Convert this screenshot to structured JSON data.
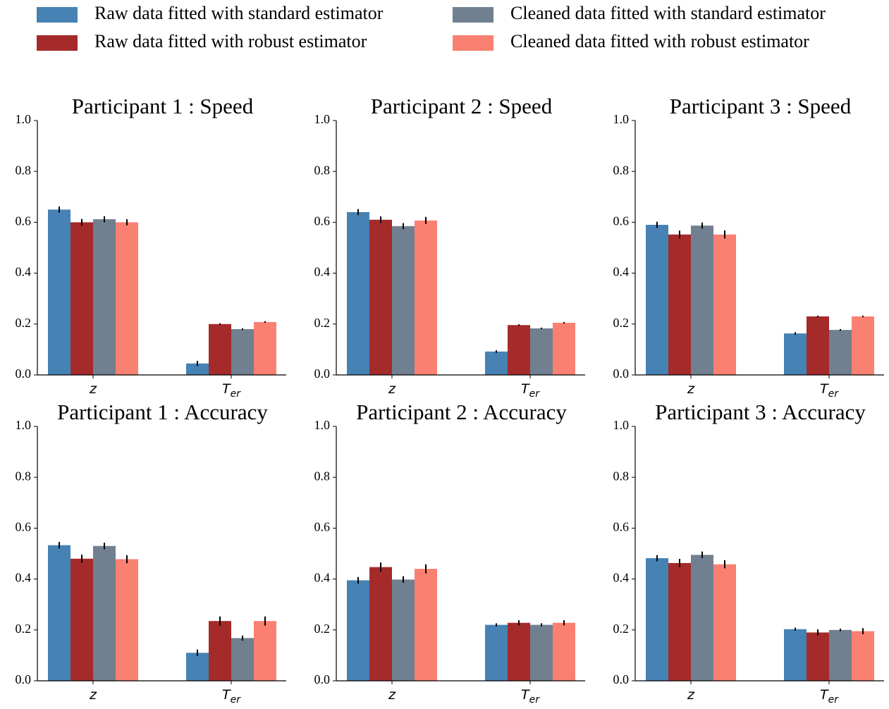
{
  "chart_data": [
    {
      "type": "bar",
      "title": "Participant 1 : Speed",
      "categories": [
        "z",
        "Ter"
      ],
      "ylim": [
        0,
        1
      ],
      "yticks": [
        {
          "value": 0,
          "label": "0.0"
        },
        {
          "value": 0.2,
          "label": "0.2"
        },
        {
          "value": 0.4,
          "label": "0.4"
        },
        {
          "value": 0.6,
          "label": "0.6"
        },
        {
          "value": 0.8,
          "label": "0.8"
        },
        {
          "value": 1,
          "label": "1.0"
        }
      ],
      "series": [
        {
          "name": "Raw data fitted with standard estimator",
          "color": "#4682b4",
          "values": [
            0.65,
            0.045
          ],
          "errors": [
            0.012,
            0.01
          ]
        },
        {
          "name": "Raw data fitted with robust estimator",
          "color": "#a52a2a",
          "values": [
            0.6,
            0.2
          ],
          "errors": [
            0.013,
            0.003
          ]
        },
        {
          "name": "Cleaned data fitted with standard estimator",
          "color": "#708090",
          "values": [
            0.612,
            0.18
          ],
          "errors": [
            0.012,
            0.003
          ]
        },
        {
          "name": "Cleaned data fitted with robust estimator",
          "color": "#fa8072",
          "values": [
            0.6,
            0.208
          ],
          "errors": [
            0.012,
            0.003
          ]
        }
      ]
    },
    {
      "type": "bar",
      "title": "Participant 2 : Speed",
      "categories": [
        "z",
        "Ter"
      ],
      "ylim": [
        0,
        1
      ],
      "yticks": [
        {
          "value": 0,
          "label": "0.0"
        },
        {
          "value": 0.2,
          "label": "0.2"
        },
        {
          "value": 0.4,
          "label": "0.4"
        },
        {
          "value": 0.6,
          "label": "0.6"
        },
        {
          "value": 0.8,
          "label": "0.8"
        },
        {
          "value": 1,
          "label": "1.0"
        }
      ],
      "series": [
        {
          "name": "Raw data fitted with standard estimator",
          "color": "#4682b4",
          "values": [
            0.64,
            0.092
          ],
          "errors": [
            0.012,
            0.005
          ]
        },
        {
          "name": "Raw data fitted with robust estimator",
          "color": "#a52a2a",
          "values": [
            0.61,
            0.196
          ],
          "errors": [
            0.013,
            0.003
          ]
        },
        {
          "name": "Cleaned data fitted with standard estimator",
          "color": "#708090",
          "values": [
            0.585,
            0.183
          ],
          "errors": [
            0.012,
            0.003
          ]
        },
        {
          "name": "Cleaned data fitted with robust estimator",
          "color": "#fa8072",
          "values": [
            0.607,
            0.205
          ],
          "errors": [
            0.014,
            0.003
          ]
        }
      ]
    },
    {
      "type": "bar",
      "title": "Participant 3 : Speed",
      "categories": [
        "z",
        "Ter"
      ],
      "ylim": [
        0,
        1
      ],
      "yticks": [
        {
          "value": 0,
          "label": "0.0"
        },
        {
          "value": 0.2,
          "label": "0.2"
        },
        {
          "value": 0.4,
          "label": "0.4"
        },
        {
          "value": 0.6,
          "label": "0.6"
        },
        {
          "value": 0.8,
          "label": "0.8"
        },
        {
          "value": 1,
          "label": "1.0"
        }
      ],
      "series": [
        {
          "name": "Raw data fitted with standard estimator",
          "color": "#4682b4",
          "values": [
            0.59,
            0.163
          ],
          "errors": [
            0.012,
            0.005
          ]
        },
        {
          "name": "Raw data fitted with robust estimator",
          "color": "#a52a2a",
          "values": [
            0.552,
            0.23
          ],
          "errors": [
            0.015,
            0.003
          ]
        },
        {
          "name": "Cleaned data fitted with standard estimator",
          "color": "#708090",
          "values": [
            0.587,
            0.177
          ],
          "errors": [
            0.012,
            0.003
          ]
        },
        {
          "name": "Cleaned data fitted with robust estimator",
          "color": "#fa8072",
          "values": [
            0.552,
            0.23
          ],
          "errors": [
            0.016,
            0.003
          ]
        }
      ]
    },
    {
      "type": "bar",
      "title": "Participant 1 : Accuracy",
      "categories": [
        "z",
        "Ter"
      ],
      "ylim": [
        0,
        1
      ],
      "yticks": [
        {
          "value": 0,
          "label": "0.0"
        },
        {
          "value": 0.2,
          "label": "0.2"
        },
        {
          "value": 0.4,
          "label": "0.4"
        },
        {
          "value": 0.6,
          "label": "0.6"
        },
        {
          "value": 0.8,
          "label": "0.8"
        },
        {
          "value": 1,
          "label": "1.0"
        }
      ],
      "series": [
        {
          "name": "Raw data fitted with standard estimator",
          "color": "#4682b4",
          "values": [
            0.533,
            0.11
          ],
          "errors": [
            0.013,
            0.013
          ]
        },
        {
          "name": "Raw data fitted with robust estimator",
          "color": "#a52a2a",
          "values": [
            0.48,
            0.235
          ],
          "errors": [
            0.016,
            0.018
          ]
        },
        {
          "name": "Cleaned data fitted with standard estimator",
          "color": "#708090",
          "values": [
            0.53,
            0.168
          ],
          "errors": [
            0.013,
            0.01
          ]
        },
        {
          "name": "Cleaned data fitted with robust estimator",
          "color": "#fa8072",
          "values": [
            0.478,
            0.235
          ],
          "errors": [
            0.016,
            0.018
          ]
        }
      ]
    },
    {
      "type": "bar",
      "title": "Participant 2 : Accuracy",
      "categories": [
        "z",
        "Ter"
      ],
      "ylim": [
        0,
        1
      ],
      "yticks": [
        {
          "value": 0,
          "label": "0.0"
        },
        {
          "value": 0.2,
          "label": "0.2"
        },
        {
          "value": 0.4,
          "label": "0.4"
        },
        {
          "value": 0.6,
          "label": "0.6"
        },
        {
          "value": 0.8,
          "label": "0.8"
        },
        {
          "value": 1,
          "label": "1.0"
        }
      ],
      "series": [
        {
          "name": "Raw data fitted with standard estimator",
          "color": "#4682b4",
          "values": [
            0.395,
            0.22
          ],
          "errors": [
            0.013,
            0.006
          ]
        },
        {
          "name": "Raw data fitted with robust estimator",
          "color": "#a52a2a",
          "values": [
            0.447,
            0.228
          ],
          "errors": [
            0.018,
            0.01
          ]
        },
        {
          "name": "Cleaned data fitted with standard estimator",
          "color": "#708090",
          "values": [
            0.398,
            0.22
          ],
          "errors": [
            0.013,
            0.006
          ]
        },
        {
          "name": "Cleaned data fitted with robust estimator",
          "color": "#fa8072",
          "values": [
            0.44,
            0.228
          ],
          "errors": [
            0.018,
            0.01
          ]
        }
      ]
    },
    {
      "type": "bar",
      "title": "Participant 3 : Accuracy",
      "categories": [
        "z",
        "Ter"
      ],
      "ylim": [
        0,
        1
      ],
      "yticks": [
        {
          "value": 0,
          "label": "0.0"
        },
        {
          "value": 0.2,
          "label": "0.2"
        },
        {
          "value": 0.4,
          "label": "0.4"
        },
        {
          "value": 0.6,
          "label": "0.6"
        },
        {
          "value": 0.8,
          "label": "0.8"
        },
        {
          "value": 1,
          "label": "1.0"
        }
      ],
      "series": [
        {
          "name": "Raw data fitted with standard estimator",
          "color": "#4682b4",
          "values": [
            0.482,
            0.203
          ],
          "errors": [
            0.012,
            0.006
          ]
        },
        {
          "name": "Raw data fitted with robust estimator",
          "color": "#a52a2a",
          "values": [
            0.463,
            0.19
          ],
          "errors": [
            0.016,
            0.012
          ]
        },
        {
          "name": "Cleaned data fitted with standard estimator",
          "color": "#708090",
          "values": [
            0.495,
            0.2
          ],
          "errors": [
            0.013,
            0.005
          ]
        },
        {
          "name": "Cleaned data fitted with robust estimator",
          "color": "#fa8072",
          "values": [
            0.458,
            0.195
          ],
          "errors": [
            0.016,
            0.012
          ]
        }
      ]
    }
  ]
}
